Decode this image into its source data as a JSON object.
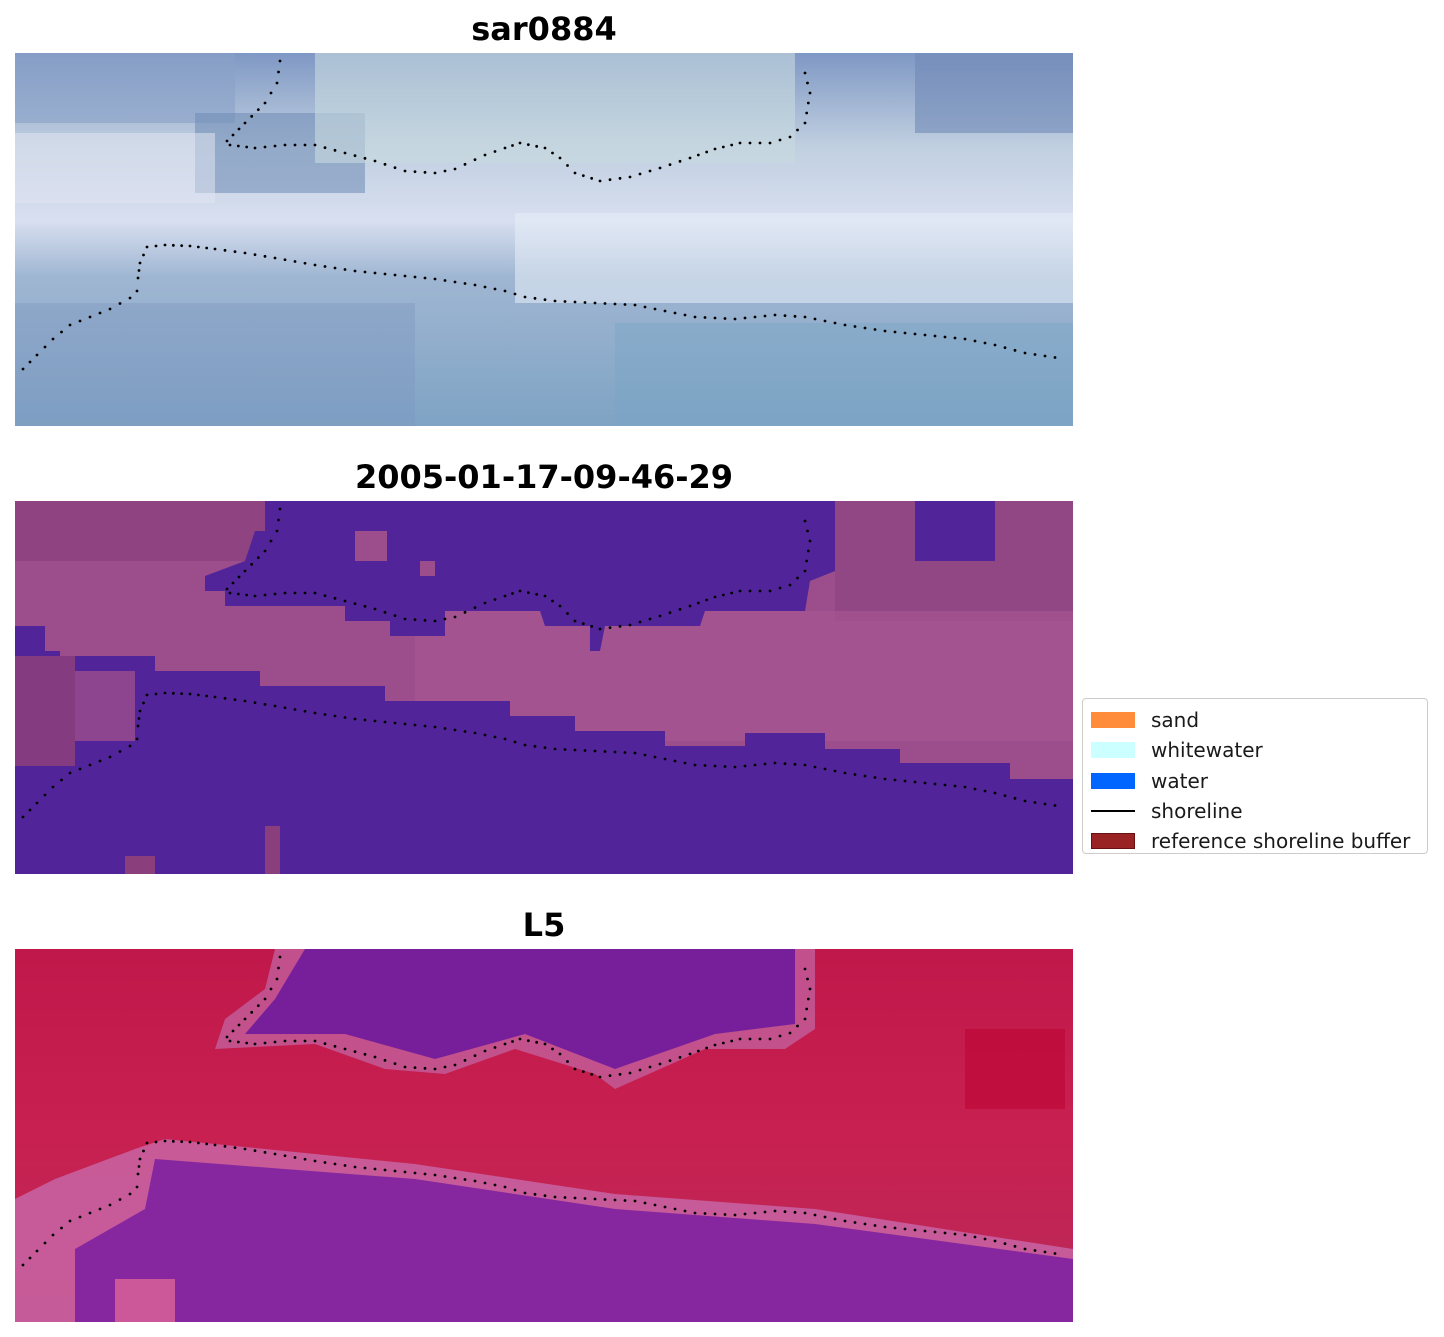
{
  "panels": [
    {
      "title": "sar0884",
      "style": "rgb"
    },
    {
      "title": "2005-01-17-09-46-29",
      "style": "classified"
    },
    {
      "title": "L5",
      "style": "index"
    }
  ],
  "legend": {
    "items": [
      {
        "label": "sand",
        "type": "patch",
        "color": "#ff8c3a"
      },
      {
        "label": "whitewater",
        "type": "patch",
        "color": "#ccffff"
      },
      {
        "label": "water",
        "type": "patch",
        "color": "#0066ff"
      },
      {
        "label": "shoreline",
        "type": "line",
        "color": "#000000"
      },
      {
        "label": "reference shoreline buffer",
        "type": "patch",
        "color": "#992222"
      }
    ]
  },
  "colors": {
    "water_class": "#52249a",
    "shoreline_dots": "#000000"
  }
}
